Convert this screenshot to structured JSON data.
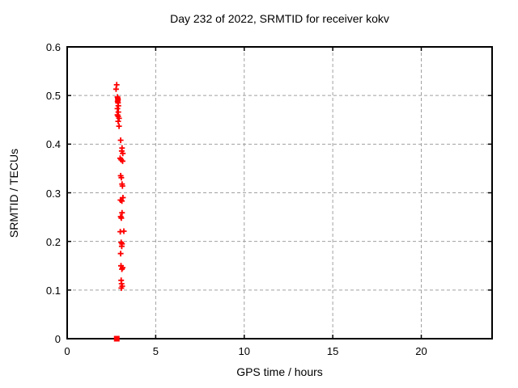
{
  "chart_data": {
    "type": "scatter",
    "title": "Day 232 of 2022, SRMTID for receiver kokv",
    "xlabel": "GPS time / hours",
    "ylabel": "SRMTID / TECUs",
    "xlim": [
      0,
      24
    ],
    "ylim": [
      0,
      0.6
    ],
    "xticks": [
      0,
      5,
      10,
      15,
      20
    ],
    "xtick_labels": [
      "0",
      "5",
      "10",
      "15",
      "20"
    ],
    "yticks": [
      0,
      0.1,
      0.2,
      0.3,
      0.4,
      0.5,
      0.6
    ],
    "ytick_labels": [
      "0",
      "0.1",
      "0.2",
      "0.3",
      "0.4",
      "0.5",
      "0.6"
    ],
    "grid": true,
    "legend_position": "none",
    "marker": "plus",
    "marker_color": "#ff0000",
    "grid_color": "#a0a0a0",
    "axis_color": "#000000",
    "series": [
      {
        "name": "SRMTID",
        "points": [
          [
            2.8,
            0.522
          ],
          [
            2.76,
            0.513
          ],
          [
            2.84,
            0.497
          ],
          [
            2.86,
            0.494
          ],
          [
            2.87,
            0.491
          ],
          [
            2.85,
            0.488
          ],
          [
            2.87,
            0.485
          ],
          [
            2.89,
            0.479
          ],
          [
            2.84,
            0.473
          ],
          [
            2.89,
            0.466
          ],
          [
            2.84,
            0.46
          ],
          [
            2.88,
            0.457
          ],
          [
            2.93,
            0.453
          ],
          [
            2.88,
            0.447
          ],
          [
            2.93,
            0.437
          ],
          [
            3.02,
            0.408
          ],
          [
            3.1,
            0.392
          ],
          [
            3.08,
            0.386
          ],
          [
            3.14,
            0.381
          ],
          [
            2.99,
            0.371
          ],
          [
            3.05,
            0.368
          ],
          [
            3.13,
            0.365
          ],
          [
            3.02,
            0.335
          ],
          [
            3.06,
            0.331
          ],
          [
            3.1,
            0.318
          ],
          [
            3.12,
            0.314
          ],
          [
            3.15,
            0.29
          ],
          [
            3.01,
            0.285
          ],
          [
            3.09,
            0.283
          ],
          [
            3.1,
            0.259
          ],
          [
            3.02,
            0.251
          ],
          [
            3.06,
            0.248
          ],
          [
            3.0,
            0.22
          ],
          [
            3.2,
            0.221
          ],
          [
            3.05,
            0.198
          ],
          [
            3.1,
            0.195
          ],
          [
            3.08,
            0.19
          ],
          [
            3.02,
            0.175
          ],
          [
            3.04,
            0.15
          ],
          [
            3.13,
            0.146
          ],
          [
            3.09,
            0.143
          ],
          [
            3.05,
            0.12
          ],
          [
            3.07,
            0.113
          ],
          [
            3.11,
            0.108
          ],
          [
            3.06,
            0.104
          ]
        ]
      }
    ],
    "square_points": [
      [
        2.8,
        0.0
      ]
    ]
  }
}
